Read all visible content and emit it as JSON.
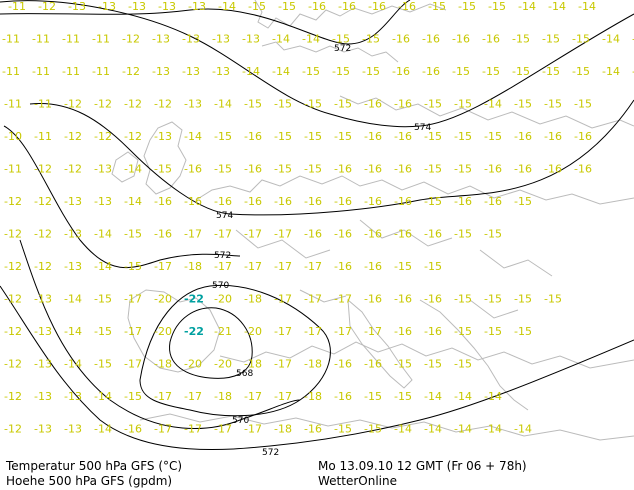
{
  "colors": {
    "temperature_label": "#c8c800",
    "temperature_min": "#00a0a0",
    "height_contour": "#000000",
    "coastline": "#bbbbbb"
  },
  "footer": {
    "line1_left": "Temperatur 500 hPa GFS (°C)",
    "line2_left": "Hoehe 500 hPa GFS (gpdm)",
    "line1_right": "Mo 13.09.10 12 GMT (Fr 06 + 78h)",
    "line2_right": "WetterOnline"
  },
  "height_contours": [
    {
      "value": "572",
      "label_at": "top"
    },
    {
      "value": "574",
      "label_at": "upper"
    },
    {
      "value": "574",
      "label_at": "middle"
    },
    {
      "value": "572",
      "label_at": "middle"
    },
    {
      "value": "570",
      "label_at": "ring"
    },
    {
      "value": "568",
      "label_at": "center"
    },
    {
      "value": "570",
      "label_at": "bottom"
    },
    {
      "value": "572",
      "label_at": "bottom"
    }
  ],
  "temperature_rows": [
    [
      "-11",
      "-12",
      "-13",
      "-13",
      "-13",
      "-13",
      "-13",
      "-14",
      "-15",
      "-15",
      "-16",
      "-16",
      "-16",
      "-16",
      "-15",
      "-15",
      "-15",
      "-14",
      "-14",
      "-14"
    ],
    [
      "-11",
      "-11",
      "-11",
      "-11",
      "-12",
      "-13",
      "-13",
      "-13",
      "-13",
      "-14",
      "-14",
      "-15",
      "-15",
      "-16",
      "-16",
      "-16",
      "-16",
      "-15",
      "-15",
      "-15",
      "-14",
      "-14"
    ],
    [
      "-11",
      "-11",
      "-11",
      "-11",
      "-12",
      "-13",
      "-13",
      "-13",
      "-14",
      "-14",
      "-15",
      "-15",
      "-15",
      "-16",
      "-16",
      "-15",
      "-15",
      "-15",
      "-15",
      "-15",
      "-14",
      "-14"
    ],
    [
      "-11",
      "-11",
      "-12",
      "-12",
      "-12",
      "-12",
      "-13",
      "-14",
      "-15",
      "-15",
      "-15",
      "-15",
      "-16",
      "-16",
      "-15",
      "-15",
      "-14",
      "-15",
      "-15",
      "-15"
    ],
    [
      "-10",
      "-11",
      "-12",
      "-12",
      "-12",
      "-13",
      "-14",
      "-15",
      "-16",
      "-15",
      "-15",
      "-15",
      "-16",
      "-16",
      "-15",
      "-15",
      "-15",
      "-16",
      "-16",
      "-16"
    ],
    [
      "-11",
      "-12",
      "-12",
      "-13",
      "-14",
      "-15",
      "-16",
      "-15",
      "-16",
      "-15",
      "-15",
      "-16",
      "-16",
      "-16",
      "-15",
      "-15",
      "-16",
      "-16",
      "-16",
      "-16"
    ],
    [
      "-12",
      "-12",
      "-13",
      "-13",
      "-14",
      "-16",
      "-16",
      "-16",
      "-16",
      "-16",
      "-16",
      "-16",
      "-16",
      "-16",
      "-15",
      "-16",
      "-16",
      "-15"
    ],
    [
      "-12",
      "-12",
      "-13",
      "-14",
      "-15",
      "-16",
      "-17",
      "-17",
      "-17",
      "-17",
      "-16",
      "-16",
      "-16",
      "-16",
      "-16",
      "-15",
      "-15"
    ],
    [
      "-12",
      "-12",
      "-13",
      "-14",
      "-15",
      "-17",
      "-18",
      "-17",
      "-17",
      "-17",
      "-17",
      "-16",
      "-16",
      "-15",
      "-15"
    ],
    [
      "-12",
      "-13",
      "-14",
      "-15",
      "-17",
      "-20",
      "-22",
      "-20",
      "-18",
      "-17",
      "-17",
      "-17",
      "-16",
      "-16",
      "-16",
      "-15",
      "-15",
      "-15",
      "-15"
    ],
    [
      "-12",
      "-13",
      "-14",
      "-15",
      "-17",
      "-20",
      "-22",
      "-21",
      "-20",
      "-17",
      "-17",
      "-17",
      "-17",
      "-16",
      "-16",
      "-15",
      "-15",
      "-15"
    ],
    [
      "-12",
      "-13",
      "-14",
      "-15",
      "-17",
      "-18",
      "-20",
      "-20",
      "-18",
      "-17",
      "-18",
      "-16",
      "-16",
      "-15",
      "-15",
      "-15"
    ],
    [
      "-12",
      "-13",
      "-13",
      "-14",
      "-15",
      "-17",
      "-17",
      "-18",
      "-17",
      "-17",
      "-18",
      "-16",
      "-15",
      "-15",
      "-14",
      "-14",
      "-14"
    ],
    [
      "-12",
      "-13",
      "-13",
      "-14",
      "-16",
      "-17",
      "-17",
      "-17",
      "-17",
      "-18",
      "-16",
      "-15",
      "-15",
      "-14",
      "-14",
      "-14",
      "-14",
      "-14"
    ]
  ],
  "temperature_minimum_value": "-22"
}
